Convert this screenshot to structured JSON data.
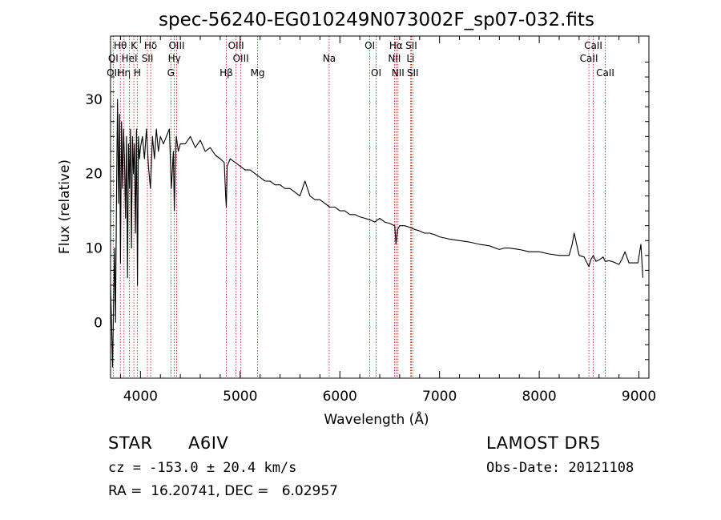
{
  "chart_data": {
    "type": "line",
    "title": "spec-56240-EG010249N073002F_sp07-032.fits",
    "xlabel": "Wavelength (Å)",
    "ylabel": "Flux (relative)",
    "xlim": [
      3700,
      9100
    ],
    "ylim": [
      -7.5,
      38.5
    ],
    "xticks": [
      4000,
      5000,
      6000,
      7000,
      8000,
      9000
    ],
    "yticks": [
      0,
      10,
      20,
      30
    ],
    "grid": false,
    "series": [
      {
        "x": [
          3700,
          3710,
          3720,
          3730,
          3740,
          3750,
          3760,
          3770,
          3780,
          3790,
          3800,
          3810,
          3820,
          3830,
          3840,
          3850,
          3860,
          3870,
          3880,
          3890,
          3900,
          3910,
          3920,
          3930,
          3940,
          3950,
          3960,
          3970,
          3980,
          3990,
          4000,
          4020,
          4040,
          4060,
          4080,
          4100,
          4120,
          4140,
          4160,
          4180,
          4200,
          4230,
          4260,
          4290,
          4310,
          4330,
          4340,
          4350,
          4360,
          4380,
          4400,
          4450,
          4500,
          4550,
          4600,
          4650,
          4700,
          4750,
          4800,
          4840,
          4855,
          4861,
          4870,
          4900,
          4950,
          5000,
          5050,
          5100,
          5150,
          5200,
          5250,
          5300,
          5350,
          5400,
          5450,
          5500,
          5550,
          5600,
          5650,
          5700,
          5750,
          5800,
          5850,
          5900,
          5950,
          6000,
          6050,
          6100,
          6150,
          6200,
          6250,
          6300,
          6350,
          6400,
          6450,
          6500,
          6550,
          6563,
          6580,
          6600,
          6650,
          6700,
          6750,
          6800,
          6850,
          6900,
          6950,
          7000,
          7100,
          7200,
          7300,
          7400,
          7500,
          7600,
          7650,
          7700,
          7800,
          7900,
          8000,
          8100,
          8200,
          8300,
          8330,
          8350,
          8400,
          8450,
          8498,
          8520,
          8542,
          8570,
          8600,
          8640,
          8662,
          8700,
          8750,
          8800,
          8830,
          8860,
          8900,
          8950,
          8990,
          9020,
          9040
        ],
        "values": [
          5,
          0,
          -6,
          2,
          10,
          0,
          18,
          30,
          16,
          28,
          8,
          27,
          18,
          26,
          22,
          14,
          25,
          6,
          24,
          18,
          26,
          10,
          25,
          20,
          24,
          12,
          26,
          5,
          25,
          22,
          23.5,
          25,
          22,
          26,
          21,
          18,
          25,
          22,
          26,
          23,
          25,
          24,
          25,
          26,
          18,
          23,
          15,
          22,
          25,
          23,
          24,
          24,
          25,
          23.5,
          24.5,
          23,
          23.5,
          22.5,
          22,
          21.5,
          17,
          15.5,
          21,
          22,
          21.5,
          21,
          20.5,
          20.5,
          20,
          19.5,
          19,
          19,
          18.5,
          18.5,
          18,
          18,
          17.5,
          17,
          19,
          17,
          16.5,
          16.5,
          16,
          15.5,
          15.5,
          15,
          15,
          14.5,
          14.5,
          14.2,
          14,
          13.8,
          13.5,
          14,
          13.5,
          13.3,
          13,
          10.5,
          12.5,
          13,
          13,
          12.8,
          12.5,
          12.3,
          12,
          12,
          11.8,
          11.5,
          11.2,
          11,
          10.8,
          10.5,
          10.3,
          9.8,
          10,
          10,
          9.8,
          9.5,
          9.5,
          9.2,
          9,
          9,
          10.5,
          12,
          9,
          8.8,
          7.5,
          8.5,
          9,
          8.2,
          8.4,
          8.8,
          8.2,
          8.3,
          8.1,
          7.8,
          8.5,
          9.5,
          8,
          8,
          8,
          10.5,
          6
        ]
      }
    ],
    "spectral_lines": [
      {
        "label": "Hθ",
        "wavelength": 3798,
        "row": 1
      },
      {
        "label": "K",
        "wavelength": 3934,
        "row": 1
      },
      {
        "label": "Hδ",
        "wavelength": 4102,
        "row": 1
      },
      {
        "label": "OIII",
        "wavelength": 4363,
        "row": 1
      },
      {
        "label": "OIII",
        "wavelength": 4959,
        "row": 1
      },
      {
        "label": "OI",
        "wavelength": 6300,
        "row": 1
      },
      {
        "label": "Hα",
        "wavelength": 6563,
        "row": 1
      },
      {
        "label": "SII",
        "wavelength": 6717,
        "row": 1
      },
      {
        "label": "CaII",
        "wavelength": 8542,
        "row": 1
      },
      {
        "label": "OI",
        "wavelength": 3727,
        "row": 2
      },
      {
        "label": "HeI",
        "wavelength": 3889,
        "row": 2
      },
      {
        "label": "SII",
        "wavelength": 4070,
        "row": 2
      },
      {
        "label": "Hγ",
        "wavelength": 4340,
        "row": 2
      },
      {
        "label": "OIII",
        "wavelength": 5007,
        "row": 2
      },
      {
        "label": "Na",
        "wavelength": 5893,
        "row": 2
      },
      {
        "label": "NII",
        "wavelength": 6548,
        "row": 2
      },
      {
        "label": "Li",
        "wavelength": 6708,
        "row": 2
      },
      {
        "label": "CaII",
        "wavelength": 8498,
        "row": 2
      },
      {
        "label": "OII",
        "wavelength": 3727,
        "row": 3
      },
      {
        "label": "Hη",
        "wavelength": 3835,
        "row": 3
      },
      {
        "label": "H",
        "wavelength": 3968,
        "row": 3
      },
      {
        "label": "G",
        "wavelength": 4305,
        "row": 3
      },
      {
        "label": "Hβ",
        "wavelength": 4861,
        "row": 3
      },
      {
        "label": "Mg",
        "wavelength": 5175,
        "row": 3
      },
      {
        "label": "OI",
        "wavelength": 6364,
        "row": 3
      },
      {
        "label": "NII",
        "wavelength": 6583,
        "row": 3
      },
      {
        "label": "SII",
        "wavelength": 6731,
        "row": 3
      },
      {
        "label": "CaII",
        "wavelength": 8662,
        "row": 3
      }
    ],
    "line_color": "#000000",
    "marker_line_color": "#cc0000"
  },
  "info": {
    "class_label": "STAR",
    "subclass": "A6IV",
    "survey": "LAMOST DR5",
    "redshift": "cz = -153.0 ± 20.4 km/s",
    "obs_date": "Obs-Date: 20121108",
    "coords": "RA =  16.20741, DEC =   6.02957"
  }
}
